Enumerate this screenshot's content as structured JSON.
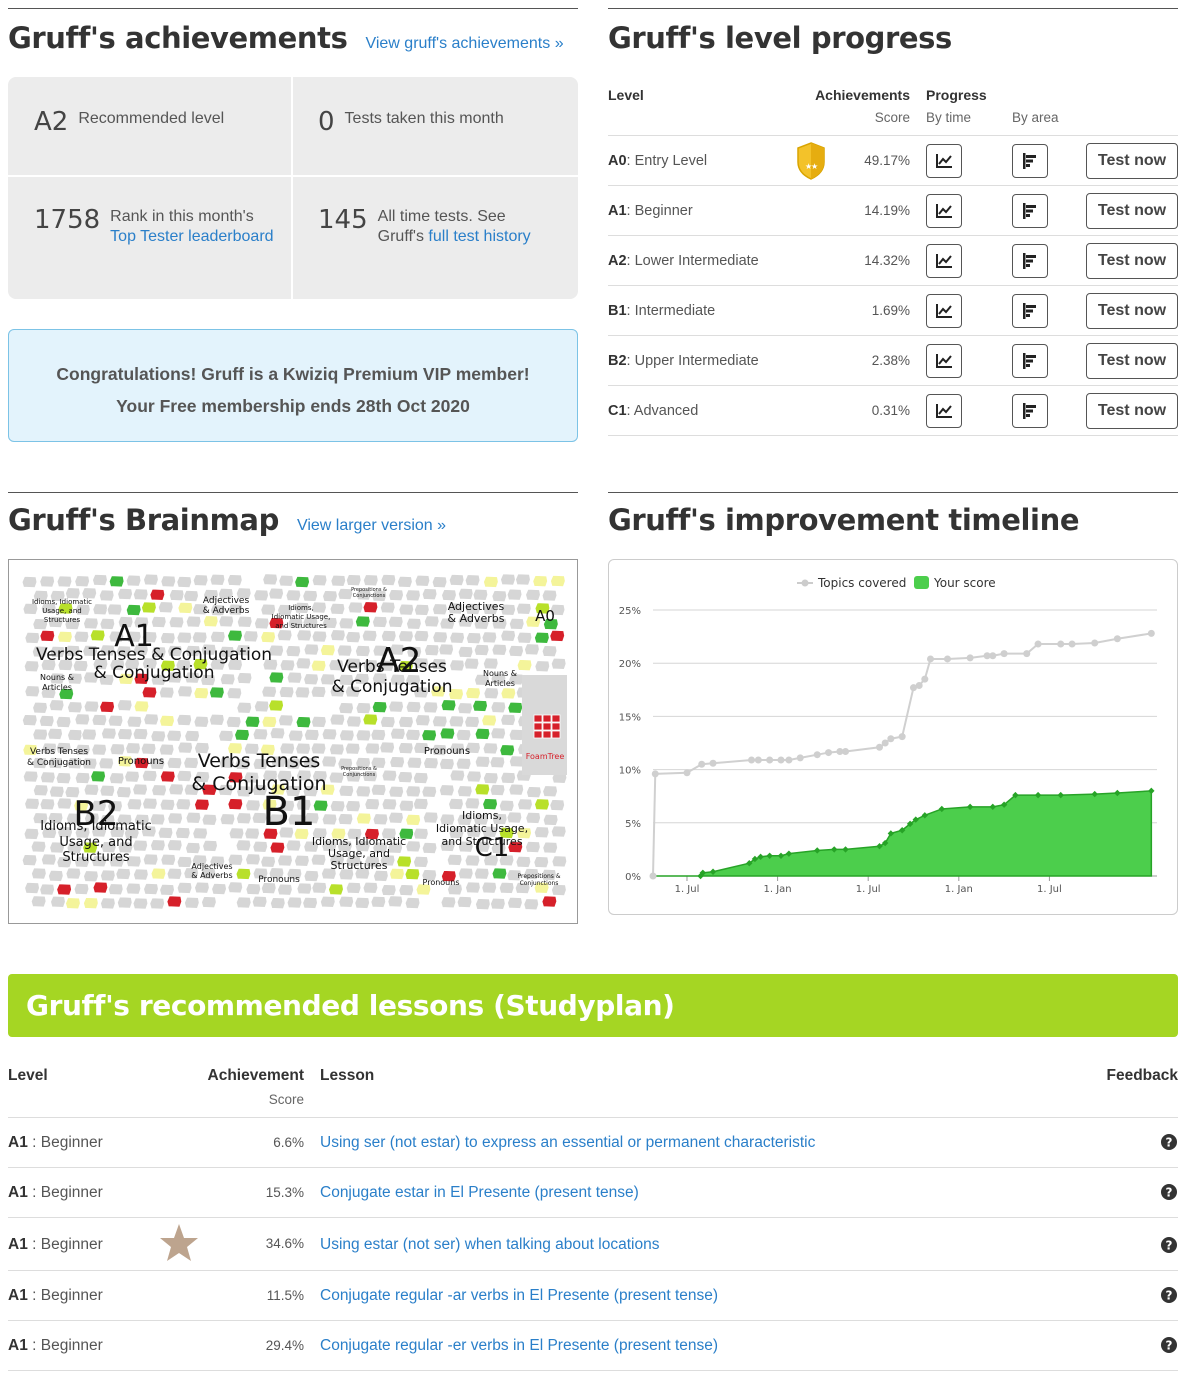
{
  "achievements": {
    "title": "Gruff's achievements",
    "view_link": "View gruff's achievements »",
    "stats": [
      {
        "value": "A2",
        "text": "Recommended level"
      },
      {
        "value": "0",
        "text": "Tests taken this month"
      },
      {
        "value": "1758",
        "text_pre": "Rank in this month's",
        "link": "Top Tester leaderboard"
      },
      {
        "value": "145",
        "text_pre": "All time tests. See",
        "text_mid": "Gruff's ",
        "link": "full test history"
      }
    ],
    "vip_line1": "Congratulations! Gruff is a Kwiziq Premium VIP member!",
    "vip_line2": "Your Free membership ends 28th Oct 2020"
  },
  "level_progress": {
    "title": "Gruff's level progress",
    "headers": {
      "level": "Level",
      "achievements": "Achievements",
      "score": "Score",
      "progress": "Progress",
      "by_time": "By time",
      "by_area": "By area"
    },
    "rows": [
      {
        "code": "A0",
        "name": ": Entry Level",
        "score": "49.17%",
        "badge": true
      },
      {
        "code": "A1",
        "name": ": Beginner",
        "score": "14.19%",
        "badge": false
      },
      {
        "code": "A2",
        "name": ": Lower Intermediate",
        "score": "14.32%",
        "badge": false
      },
      {
        "code": "B1",
        "name": ": Intermediate",
        "score": "1.69%",
        "badge": false
      },
      {
        "code": "B2",
        "name": ": Upper Intermediate",
        "score": "2.38%",
        "badge": false
      },
      {
        "code": "C1",
        "name": ": Advanced",
        "score": "0.31%",
        "badge": false
      }
    ],
    "test_label": "Test now",
    "icons": {
      "by_time": "line-chart-icon",
      "by_area": "bar-chart-icon",
      "badge": "shield-badge-icon"
    }
  },
  "brainmap": {
    "title": "Gruff's Brainmap",
    "view_link": "View larger version »",
    "regions": [
      {
        "label": "A1"
      },
      {
        "label": "A2"
      },
      {
        "label": "B1"
      },
      {
        "label": "B2"
      },
      {
        "label": "C1"
      },
      {
        "label": "A0"
      }
    ],
    "topic_labels": [
      "Verbs Tenses & Conjugation",
      "Adjectives & Adverbs",
      "Nouns & Articles",
      "Pronouns",
      "Idioms, Idiomatic Usage, and Structures",
      "Prepositions & Conjunctions"
    ],
    "brand": "FoamTree",
    "colors": {
      "green": "#3eb93e",
      "lightgreen": "#b8e02a",
      "yellow": "#f4f49a",
      "red": "#d6202a",
      "grey": "#d3d3d3"
    }
  },
  "timeline": {
    "title": "Gruff's improvement timeline"
  },
  "chart_data": {
    "type": "area",
    "legend": [
      "Topics covered",
      "Your score"
    ],
    "legend_position": "top-center",
    "x_ticks": [
      "1. Jul",
      "1. Jan",
      "1. Jul",
      "1. Jan",
      "1. Jul"
    ],
    "y_ticks": [
      "0%",
      "5%",
      "10%",
      "15%",
      "20%",
      "25%"
    ],
    "ylim": [
      0,
      25
    ],
    "grid": true,
    "series": [
      {
        "name": "Topics covered",
        "type": "line",
        "color": "#cccccc",
        "points": [
          [
            0,
            0
          ],
          [
            0.2,
            9.6
          ],
          [
            3,
            9.7
          ],
          [
            4.3,
            10.5
          ],
          [
            5.3,
            10.6
          ],
          [
            8.7,
            10.9
          ],
          [
            9.3,
            10.9
          ],
          [
            10.3,
            10.9
          ],
          [
            11.3,
            10.9
          ],
          [
            12,
            10.9
          ],
          [
            13,
            11.1
          ],
          [
            14.5,
            11.4
          ],
          [
            15.5,
            11.6
          ],
          [
            16.5,
            11.7
          ],
          [
            17,
            11.7
          ],
          [
            20,
            12.1
          ],
          [
            20.5,
            12.5
          ],
          [
            21,
            12.9
          ],
          [
            22,
            13.1
          ],
          [
            23,
            17.7
          ],
          [
            23.5,
            17.9
          ],
          [
            24,
            18.5
          ],
          [
            24.5,
            20.4
          ],
          [
            26,
            20.4
          ],
          [
            28,
            20.5
          ],
          [
            29.5,
            20.7
          ],
          [
            30,
            20.7
          ],
          [
            31,
            20.9
          ],
          [
            33,
            20.9
          ],
          [
            34,
            21.8
          ],
          [
            36,
            21.8
          ],
          [
            37,
            21.8
          ],
          [
            39,
            21.9
          ],
          [
            41,
            22.3
          ],
          [
            44,
            22.8
          ]
        ]
      },
      {
        "name": "Your score",
        "type": "area",
        "color": "#4cce4c",
        "points": [
          [
            0,
            0
          ],
          [
            4.2,
            0
          ],
          [
            4.4,
            0.3
          ],
          [
            5.3,
            0.4
          ],
          [
            8.5,
            1.2
          ],
          [
            9,
            1.6
          ],
          [
            9.5,
            1.8
          ],
          [
            10.3,
            1.9
          ],
          [
            11.3,
            1.9
          ],
          [
            12,
            2.1
          ],
          [
            14.5,
            2.4
          ],
          [
            16,
            2.5
          ],
          [
            17,
            2.5
          ],
          [
            20,
            2.8
          ],
          [
            20.5,
            3.1
          ],
          [
            21,
            4.0
          ],
          [
            22,
            4.3
          ],
          [
            22.7,
            4.9
          ],
          [
            23.2,
            5.3
          ],
          [
            24,
            5.7
          ],
          [
            25.5,
            6.3
          ],
          [
            28,
            6.5
          ],
          [
            30,
            6.5
          ],
          [
            31,
            6.7
          ],
          [
            32,
            7.6
          ],
          [
            34,
            7.6
          ],
          [
            36,
            7.6
          ],
          [
            39,
            7.7
          ],
          [
            41,
            7.8
          ],
          [
            44,
            8.0
          ]
        ]
      }
    ],
    "x_tick_positions": [
      3,
      11,
      19,
      27,
      35
    ]
  },
  "studyplan": {
    "title": "Gruff's recommended lessons (Studyplan)",
    "headers": {
      "level": "Level",
      "achievement": "Achievement",
      "score": "Score",
      "lesson": "Lesson",
      "feedback": "Feedback"
    },
    "rows": [
      {
        "code": "A1",
        "name": " : Beginner",
        "score": "6.6%",
        "lesson": "Using ser (not estar) to express an essential or permanent characteristic",
        "star": false
      },
      {
        "code": "A1",
        "name": " : Beginner",
        "score": "15.3%",
        "lesson": "Conjugate estar in El Presente (present tense)",
        "star": false
      },
      {
        "code": "A1",
        "name": " : Beginner",
        "score": "34.6%",
        "lesson": "Using estar (not ser) when talking about locations",
        "star": true
      },
      {
        "code": "A1",
        "name": " : Beginner",
        "score": "11.5%",
        "lesson": "Conjugate regular -ar verbs in El Presente (present tense)",
        "star": false
      },
      {
        "code": "A1",
        "name": " : Beginner",
        "score": "29.4%",
        "lesson": "Conjugate regular -er verbs in El Presente (present tense)",
        "star": false
      }
    ],
    "icons": {
      "feedback": "question-circle-icon",
      "star": "star-icon"
    }
  }
}
